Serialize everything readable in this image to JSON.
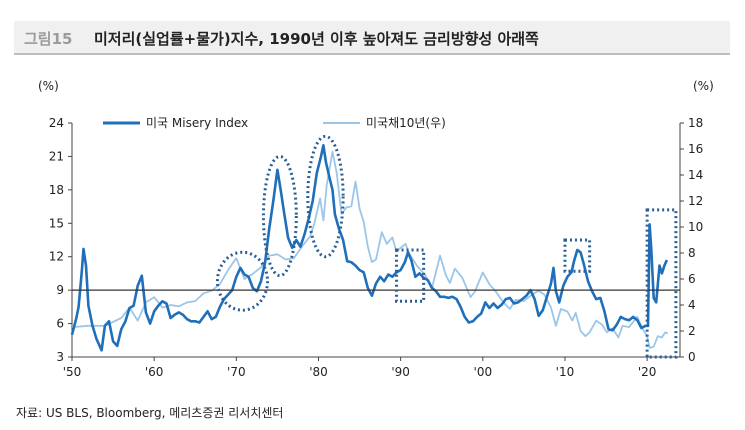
{
  "header": {
    "figure_label": "그림15",
    "title": "미저리(실업률+물가)지수, 1990년 이후 높아져도 금리방향성 아래쪽"
  },
  "source": "자료: US BLS, Bloomberg, 메리츠증권 리서치센터",
  "colors": {
    "misery": "#1f6fba",
    "treasury": "#9cc6e8",
    "refline": "#333333",
    "highlight": "#2a5d95"
  },
  "chart_data": {
    "type": "line",
    "title": "",
    "y_left_unit": "(%)",
    "y_right_unit": "(%)",
    "ylim_left": [
      3,
      24
    ],
    "ylim_right": [
      0,
      18
    ],
    "yticks_left": [
      "24",
      "21",
      "18",
      "15",
      "12",
      "9",
      "6",
      "3"
    ],
    "yticks_right": [
      "18",
      "16",
      "14",
      "12",
      "10",
      "8",
      "6",
      "4",
      "2",
      "0"
    ],
    "xlim": [
      1950,
      2024
    ],
    "xticks": [
      {
        "x": 1950,
        "label": "'50"
      },
      {
        "x": 1960,
        "label": "'60"
      },
      {
        "x": 1970,
        "label": "'70"
      },
      {
        "x": 1980,
        "label": "'80"
      },
      {
        "x": 1990,
        "label": "'90"
      },
      {
        "x": 2000,
        "label": "'00"
      },
      {
        "x": 2010,
        "label": "'10"
      },
      {
        "x": 2020,
        "label": "'20"
      }
    ],
    "reference_line_left": 9,
    "legend_position": "top-left",
    "series": [
      {
        "name": "미국 Misery Index",
        "axis": "left",
        "points": [
          [
            1950,
            5.0
          ],
          [
            1950.5,
            6.4
          ],
          [
            1950.8,
            7.5
          ],
          [
            1951.2,
            10.8
          ],
          [
            1951.4,
            12.7
          ],
          [
            1951.7,
            11.2
          ],
          [
            1952.0,
            7.6
          ],
          [
            1952.5,
            5.8
          ],
          [
            1953.0,
            4.6
          ],
          [
            1953.6,
            3.6
          ],
          [
            1954.0,
            5.8
          ],
          [
            1954.5,
            6.2
          ],
          [
            1955.0,
            4.4
          ],
          [
            1955.5,
            4.0
          ],
          [
            1956.0,
            5.5
          ],
          [
            1956.5,
            6.2
          ],
          [
            1957.0,
            7.4
          ],
          [
            1957.5,
            7.6
          ],
          [
            1958.0,
            9.4
          ],
          [
            1958.5,
            10.3
          ],
          [
            1959.0,
            7.0
          ],
          [
            1959.5,
            6.0
          ],
          [
            1960.0,
            7.1
          ],
          [
            1960.5,
            7.6
          ],
          [
            1961.0,
            8.0
          ],
          [
            1961.5,
            7.8
          ],
          [
            1962.0,
            6.5
          ],
          [
            1962.5,
            6.8
          ],
          [
            1963.0,
            7.0
          ],
          [
            1963.5,
            6.8
          ],
          [
            1964.0,
            6.4
          ],
          [
            1964.5,
            6.2
          ],
          [
            1965.0,
            6.2
          ],
          [
            1965.5,
            6.1
          ],
          [
            1966.0,
            6.6
          ],
          [
            1966.5,
            7.1
          ],
          [
            1967.0,
            6.4
          ],
          [
            1967.5,
            6.6
          ],
          [
            1968.0,
            7.5
          ],
          [
            1968.5,
            8.2
          ],
          [
            1969.0,
            8.6
          ],
          [
            1969.5,
            9.0
          ],
          [
            1970.0,
            10.2
          ],
          [
            1970.5,
            11.0
          ],
          [
            1971.0,
            10.4
          ],
          [
            1971.5,
            10.2
          ],
          [
            1972.0,
            9.2
          ],
          [
            1972.5,
            8.9
          ],
          [
            1973.0,
            9.8
          ],
          [
            1973.5,
            11.5
          ],
          [
            1974.0,
            14.5
          ],
          [
            1974.5,
            17.0
          ],
          [
            1975.0,
            19.8
          ],
          [
            1975.4,
            18.0
          ],
          [
            1975.8,
            16.0
          ],
          [
            1976.3,
            13.7
          ],
          [
            1976.8,
            12.8
          ],
          [
            1977.3,
            13.5
          ],
          [
            1977.8,
            12.9
          ],
          [
            1978.3,
            14.0
          ],
          [
            1978.8,
            15.4
          ],
          [
            1979.3,
            17.0
          ],
          [
            1979.8,
            19.5
          ],
          [
            1980.3,
            21.0
          ],
          [
            1980.6,
            22.0
          ],
          [
            1980.9,
            20.5
          ],
          [
            1981.3,
            19.2
          ],
          [
            1981.7,
            18.0
          ],
          [
            1982.0,
            15.8
          ],
          [
            1982.5,
            14.5
          ],
          [
            1983.0,
            13.5
          ],
          [
            1983.5,
            11.6
          ],
          [
            1984.0,
            11.5
          ],
          [
            1984.5,
            11.2
          ],
          [
            1985.0,
            10.8
          ],
          [
            1985.5,
            10.6
          ],
          [
            1986.0,
            9.2
          ],
          [
            1986.5,
            8.5
          ],
          [
            1987.0,
            9.6
          ],
          [
            1987.5,
            10.2
          ],
          [
            1988.0,
            9.8
          ],
          [
            1988.5,
            10.4
          ],
          [
            1989.0,
            10.2
          ],
          [
            1989.5,
            10.6
          ],
          [
            1990.0,
            10.8
          ],
          [
            1990.5,
            11.5
          ],
          [
            1990.9,
            12.4
          ],
          [
            1991.3,
            11.7
          ],
          [
            1991.8,
            10.2
          ],
          [
            1992.3,
            10.5
          ],
          [
            1992.8,
            10.1
          ],
          [
            1993.3,
            9.9
          ],
          [
            1993.8,
            9.2
          ],
          [
            1994.3,
            8.9
          ],
          [
            1994.8,
            8.4
          ],
          [
            1995.3,
            8.4
          ],
          [
            1995.8,
            8.3
          ],
          [
            1996.3,
            8.4
          ],
          [
            1996.8,
            8.2
          ],
          [
            1997.3,
            7.5
          ],
          [
            1997.8,
            6.6
          ],
          [
            1998.3,
            6.1
          ],
          [
            1998.8,
            6.2
          ],
          [
            1999.3,
            6.6
          ],
          [
            1999.8,
            6.9
          ],
          [
            2000.3,
            7.9
          ],
          [
            2000.8,
            7.4
          ],
          [
            2001.3,
            7.8
          ],
          [
            2001.8,
            7.4
          ],
          [
            2002.3,
            7.7
          ],
          [
            2002.8,
            8.2
          ],
          [
            2003.3,
            8.3
          ],
          [
            2003.8,
            7.8
          ],
          [
            2004.3,
            7.9
          ],
          [
            2004.8,
            8.2
          ],
          [
            2005.3,
            8.5
          ],
          [
            2005.8,
            9.0
          ],
          [
            2006.3,
            8.2
          ],
          [
            2006.8,
            6.7
          ],
          [
            2007.3,
            7.2
          ],
          [
            2007.8,
            8.4
          ],
          [
            2008.3,
            9.6
          ],
          [
            2008.6,
            11.0
          ],
          [
            2008.9,
            8.9
          ],
          [
            2009.3,
            7.9
          ],
          [
            2009.8,
            9.4
          ],
          [
            2010.3,
            10.2
          ],
          [
            2010.8,
            10.6
          ],
          [
            2011.1,
            11.6
          ],
          [
            2011.5,
            12.6
          ],
          [
            2011.9,
            12.4
          ],
          [
            2012.3,
            11.3
          ],
          [
            2012.8,
            9.8
          ],
          [
            2013.3,
            8.9
          ],
          [
            2013.8,
            8.2
          ],
          [
            2014.3,
            8.3
          ],
          [
            2014.8,
            7.1
          ],
          [
            2015.3,
            5.5
          ],
          [
            2015.8,
            5.4
          ],
          [
            2016.3,
            5.9
          ],
          [
            2016.8,
            6.6
          ],
          [
            2017.3,
            6.4
          ],
          [
            2017.8,
            6.3
          ],
          [
            2018.3,
            6.6
          ],
          [
            2018.8,
            6.3
          ],
          [
            2019.3,
            5.6
          ],
          [
            2019.8,
            5.8
          ],
          [
            2020.1,
            5.8
          ],
          [
            2020.3,
            14.9
          ],
          [
            2020.5,
            12.8
          ],
          [
            2020.8,
            8.3
          ],
          [
            2021.1,
            7.9
          ],
          [
            2021.5,
            11.2
          ],
          [
            2021.8,
            10.5
          ],
          [
            2022.1,
            11.2
          ],
          [
            2022.4,
            11.7
          ]
        ]
      },
      {
        "name": "미국채10년(우)",
        "axis": "right",
        "points": [
          [
            1950,
            2.3
          ],
          [
            1952,
            2.4
          ],
          [
            1954,
            2.4
          ],
          [
            1956,
            3.0
          ],
          [
            1957,
            3.8
          ],
          [
            1958,
            2.8
          ],
          [
            1959,
            4.2
          ],
          [
            1960,
            4.6
          ],
          [
            1961,
            3.8
          ],
          [
            1962,
            4.0
          ],
          [
            1963,
            3.9
          ],
          [
            1964,
            4.2
          ],
          [
            1965,
            4.3
          ],
          [
            1966,
            4.9
          ],
          [
            1967,
            5.1
          ],
          [
            1968,
            5.6
          ],
          [
            1969,
            6.7
          ],
          [
            1970,
            7.6
          ],
          [
            1971,
            6.0
          ],
          [
            1972,
            6.4
          ],
          [
            1973,
            6.9
          ],
          [
            1974,
            7.8
          ],
          [
            1975,
            7.9
          ],
          [
            1976,
            7.5
          ],
          [
            1977,
            7.6
          ],
          [
            1978,
            8.5
          ],
          [
            1979,
            9.3
          ],
          [
            1979.5,
            10.3
          ],
          [
            1980.2,
            12.2
          ],
          [
            1980.6,
            10.5
          ],
          [
            1981.0,
            13.2
          ],
          [
            1981.7,
            15.8
          ],
          [
            1982.2,
            14.2
          ],
          [
            1982.8,
            11.0
          ],
          [
            1983.4,
            11.5
          ],
          [
            1984.0,
            11.6
          ],
          [
            1984.5,
            13.5
          ],
          [
            1985.0,
            11.4
          ],
          [
            1985.5,
            10.4
          ],
          [
            1986.0,
            8.5
          ],
          [
            1986.5,
            7.3
          ],
          [
            1987.0,
            7.5
          ],
          [
            1987.7,
            9.6
          ],
          [
            1988.3,
            8.7
          ],
          [
            1989.0,
            9.2
          ],
          [
            1989.5,
            8.1
          ],
          [
            1990.0,
            8.4
          ],
          [
            1990.6,
            8.7
          ],
          [
            1991.0,
            8.0
          ],
          [
            1992.0,
            7.0
          ],
          [
            1993.0,
            6.3
          ],
          [
            1993.8,
            5.3
          ],
          [
            1994.8,
            7.8
          ],
          [
            1995.5,
            6.3
          ],
          [
            1996.0,
            5.7
          ],
          [
            1996.6,
            6.8
          ],
          [
            1997.5,
            6.1
          ],
          [
            1998.5,
            4.6
          ],
          [
            1999.0,
            5.0
          ],
          [
            2000.0,
            6.5
          ],
          [
            2000.8,
            5.6
          ],
          [
            2001.5,
            5.1
          ],
          [
            2002.5,
            4.2
          ],
          [
            2003.3,
            3.7
          ],
          [
            2004.0,
            4.4
          ],
          [
            2005.0,
            4.3
          ],
          [
            2006.0,
            4.8
          ],
          [
            2006.8,
            5.1
          ],
          [
            2007.5,
            4.8
          ],
          [
            2008.3,
            3.8
          ],
          [
            2008.9,
            2.4
          ],
          [
            2009.5,
            3.7
          ],
          [
            2010.3,
            3.5
          ],
          [
            2010.9,
            2.8
          ],
          [
            2011.3,
            3.4
          ],
          [
            2011.9,
            2.0
          ],
          [
            2012.5,
            1.6
          ],
          [
            2013.0,
            1.9
          ],
          [
            2013.8,
            2.8
          ],
          [
            2014.5,
            2.5
          ],
          [
            2015.1,
            1.9
          ],
          [
            2015.8,
            2.2
          ],
          [
            2016.5,
            1.5
          ],
          [
            2017.0,
            2.4
          ],
          [
            2017.8,
            2.3
          ],
          [
            2018.8,
            3.1
          ],
          [
            2019.5,
            2.1
          ],
          [
            2020.0,
            1.6
          ],
          [
            2020.3,
            0.7
          ],
          [
            2020.8,
            0.8
          ],
          [
            2021.3,
            1.6
          ],
          [
            2021.8,
            1.5
          ],
          [
            2022.2,
            1.9
          ],
          [
            2022.5,
            1.8
          ]
        ]
      }
    ],
    "highlight_ovals": [
      {
        "x_from": 1967.7,
        "x_to": 1973.8,
        "y_from": 7.2,
        "y_to": 12.4
      },
      {
        "x_from": 1973.3,
        "x_to": 1977.3,
        "y_from": 10.3,
        "y_to": 21.0
      },
      {
        "x_from": 1978.7,
        "x_to": 1983.0,
        "y_from": 12.0,
        "y_to": 22.8
      }
    ],
    "highlight_boxes": [
      {
        "x_from": 1989.5,
        "x_to": 1992.8,
        "y_from": 8.0,
        "y_to": 12.6
      },
      {
        "x_from": 2010.0,
        "x_to": 2013.0,
        "y_from": 10.7,
        "y_to": 13.5
      },
      {
        "x_from": 2020.0,
        "x_to": 2023.5,
        "y_from": 3.0,
        "y_to": 16.2
      }
    ]
  }
}
